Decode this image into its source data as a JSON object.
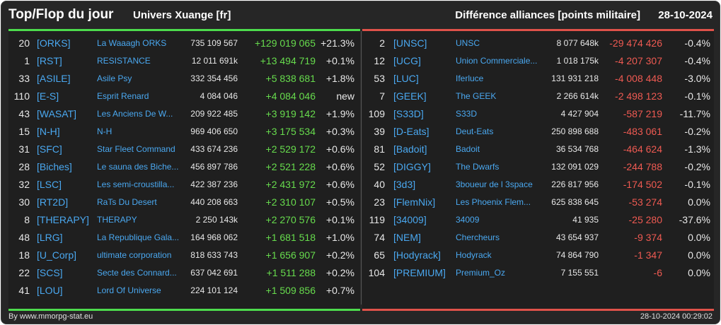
{
  "header": {
    "title": "Top/Flop du jour",
    "subtitle": "Univers Xuange [fr]",
    "right_title": "Différence alliances [points militaire]",
    "date": "28-10-2024"
  },
  "top": [
    {
      "rank": "20",
      "tag": "[ORKS]",
      "name": "La Waaagh ORKS",
      "points": "735 109 567",
      "diff": "+129 019 065",
      "pct": "+21.3%"
    },
    {
      "rank": "1",
      "tag": "[RST]",
      "name": "RESISTANCE",
      "points": "12 011 691k",
      "diff": "+13 494 719",
      "pct": "+0.1%"
    },
    {
      "rank": "33",
      "tag": "[ASILE]",
      "name": "Asile Psy",
      "points": "332 354 456",
      "diff": "+5 838 681",
      "pct": "+1.8%"
    },
    {
      "rank": "110",
      "tag": "[E-S]",
      "name": "Esprit Renard",
      "points": "4 084 046",
      "diff": "+4 084 046",
      "pct": "new"
    },
    {
      "rank": "43",
      "tag": "[WASAT]",
      "name": "Les Anciens De W...",
      "points": "209 922 485",
      "diff": "+3 919 142",
      "pct": "+1.9%"
    },
    {
      "rank": "15",
      "tag": "[N-H]",
      "name": "N-H",
      "points": "969 406 650",
      "diff": "+3 175 534",
      "pct": "+0.3%"
    },
    {
      "rank": "31",
      "tag": "[SFC]",
      "name": "Star Fleet Command",
      "points": "433 674 236",
      "diff": "+2 529 172",
      "pct": "+0.6%"
    },
    {
      "rank": "28",
      "tag": "[Biches]",
      "name": "Le sauna des Biche...",
      "points": "456 897 786",
      "diff": "+2 521 228",
      "pct": "+0.6%"
    },
    {
      "rank": "32",
      "tag": "[LSC]",
      "name": "Les semi-croustilla...",
      "points": "422 387 236",
      "diff": "+2 431 972",
      "pct": "+0.6%"
    },
    {
      "rank": "30",
      "tag": "[RT2D]",
      "name": "RaTs Du Desert",
      "points": "440 208 663",
      "diff": "+2 310 107",
      "pct": "+0.5%"
    },
    {
      "rank": "8",
      "tag": "[THERAPY]",
      "name": "THERAPY",
      "points": "2 250 143k",
      "diff": "+2 270 576",
      "pct": "+0.1%"
    },
    {
      "rank": "48",
      "tag": "[LRG]",
      "name": "La Republique Gala...",
      "points": "164 968 062",
      "diff": "+1 681 518",
      "pct": "+1.0%"
    },
    {
      "rank": "18",
      "tag": "[U_Corp]",
      "name": "ultimate corporation",
      "points": "818 633 743",
      "diff": "+1 656 907",
      "pct": "+0.2%"
    },
    {
      "rank": "22",
      "tag": "[SCS]",
      "name": "Secte des Connard...",
      "points": "637 042 691",
      "diff": "+1 511 288",
      "pct": "+0.2%"
    },
    {
      "rank": "41",
      "tag": "[LOU]",
      "name": "Lord Of Universe",
      "points": "224 101 124",
      "diff": "+1 509 856",
      "pct": "+0.7%"
    }
  ],
  "flop": [
    {
      "rank": "2",
      "tag": "[UNSC]",
      "name": "UNSC",
      "points": "8 077 648k",
      "diff": "-29 474 426",
      "pct": "-0.4%"
    },
    {
      "rank": "12",
      "tag": "[UCG]",
      "name": "Union Commerciale...",
      "points": "1 018 175k",
      "diff": "-4 207 307",
      "pct": "-0.4%"
    },
    {
      "rank": "53",
      "tag": "[LUC]",
      "name": "Iferluce",
      "points": "131 931 218",
      "diff": "-4 008 448",
      "pct": "-3.0%"
    },
    {
      "rank": "7",
      "tag": "[GEEK]",
      "name": "The GEEK",
      "points": "2 266 614k",
      "diff": "-2 498 123",
      "pct": "-0.1%"
    },
    {
      "rank": "109",
      "tag": "[S33D]",
      "name": "S33D",
      "points": "4 427 904",
      "diff": "-587 219",
      "pct": "-11.7%"
    },
    {
      "rank": "39",
      "tag": "[D-Eats]",
      "name": "Deut-Eats",
      "points": "250 898 688",
      "diff": "-483 061",
      "pct": "-0.2%"
    },
    {
      "rank": "81",
      "tag": "[Badoit]",
      "name": "Badoit",
      "points": "36 534 768",
      "diff": "-464 624",
      "pct": "-1.3%"
    },
    {
      "rank": "52",
      "tag": "[DIGGY]",
      "name": "The Dwarfs",
      "points": "132 091 029",
      "diff": "-244 788",
      "pct": "-0.2%"
    },
    {
      "rank": "40",
      "tag": "[3d3]",
      "name": "3boueur de l 3space",
      "points": "226 817 956",
      "diff": "-174 502",
      "pct": "-0.1%"
    },
    {
      "rank": "23",
      "tag": "[FlemNix]",
      "name": "Les Phoenix Flem...",
      "points": "625 838 645",
      "diff": "-53 274",
      "pct": "0.0%"
    },
    {
      "rank": "119",
      "tag": "[34009]",
      "name": "34009",
      "points": "41 935",
      "diff": "-25 280",
      "pct": "-37.6%"
    },
    {
      "rank": "74",
      "tag": "[NEM]",
      "name": "Chercheurs",
      "points": "43 654 937",
      "diff": "-9 374",
      "pct": "0.0%"
    },
    {
      "rank": "65",
      "tag": "[Hodyrack]",
      "name": "Hodyrack",
      "points": "74 864 790",
      "diff": "-1 347",
      "pct": "0.0%"
    },
    {
      "rank": "104",
      "tag": "[PREMIUM]",
      "name": "Premium_Oz",
      "points": "7 155 551",
      "diff": "-6",
      "pct": "0.0%"
    }
  ],
  "footer": {
    "credit": "By www.mmorpg-stat.eu",
    "timestamp": "28-10-2024 00:29:02"
  },
  "colors": {
    "top_accent": "#4ddc4d",
    "flop_accent": "#e0524a",
    "link": "#4aa8f0"
  }
}
